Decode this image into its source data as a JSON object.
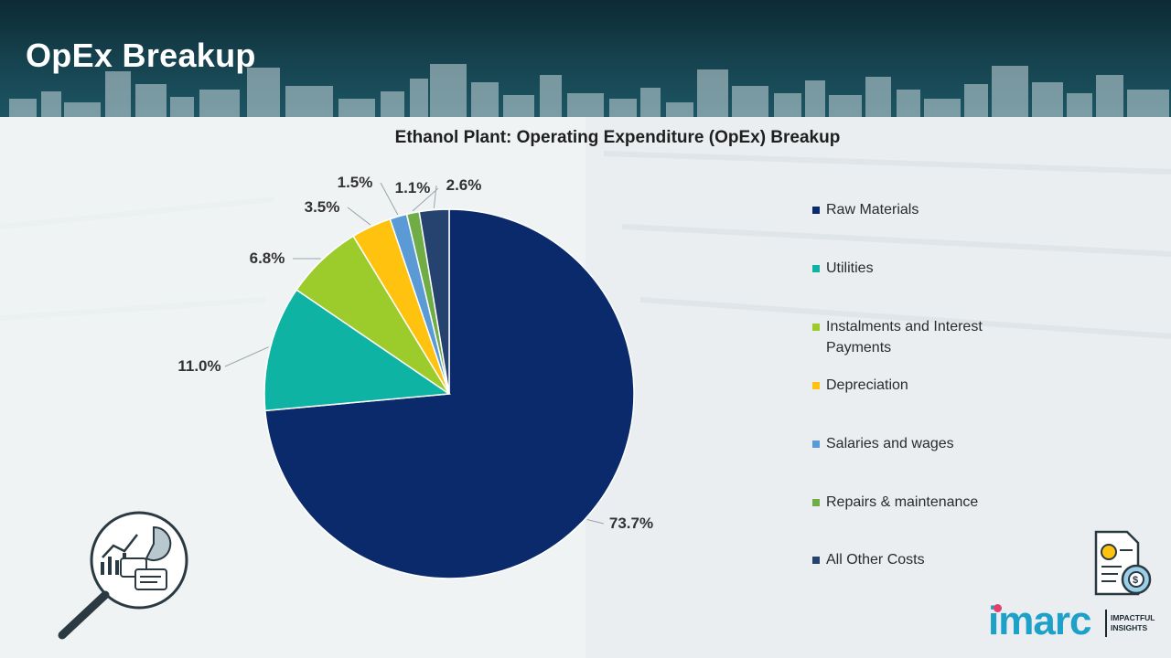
{
  "header": {
    "title": "OpEx Breakup"
  },
  "chart_data": {
    "type": "pie",
    "title": "Ethanol Plant: Operating Expenditure (OpEx) Breakup",
    "legend_position": "right",
    "slices": [
      {
        "label": "Raw Materials",
        "value": 73.7,
        "display": "73.7%",
        "color": "#0b2a6b"
      },
      {
        "label": "Utilities",
        "value": 11.0,
        "display": "11.0%",
        "color": "#0fb3a3"
      },
      {
        "label": "Instalments and Interest Payments",
        "value": 6.8,
        "display": "6.8%",
        "color": "#9ccc2b"
      },
      {
        "label": "Depreciation",
        "value": 3.5,
        "display": "3.5%",
        "color": "#ffc20e"
      },
      {
        "label": "Salaries and wages",
        "value": 1.5,
        "display": "1.5%",
        "color": "#5b9bd5"
      },
      {
        "label": "Repairs & maintenance",
        "value": 1.1,
        "display": "1.1%",
        "color": "#70ad47"
      },
      {
        "label": "All Other Costs",
        "value": 2.6,
        "display": "2.6%",
        "color": "#26426e"
      }
    ]
  },
  "branding": {
    "logo_text": "imarc",
    "tagline_line1": "IMPACTFUL",
    "tagline_line2": "INSIGHTS"
  },
  "icons": {
    "left_badge": "magnifier-analytics-icon",
    "right_badge": "finance-document-gear-icon"
  }
}
